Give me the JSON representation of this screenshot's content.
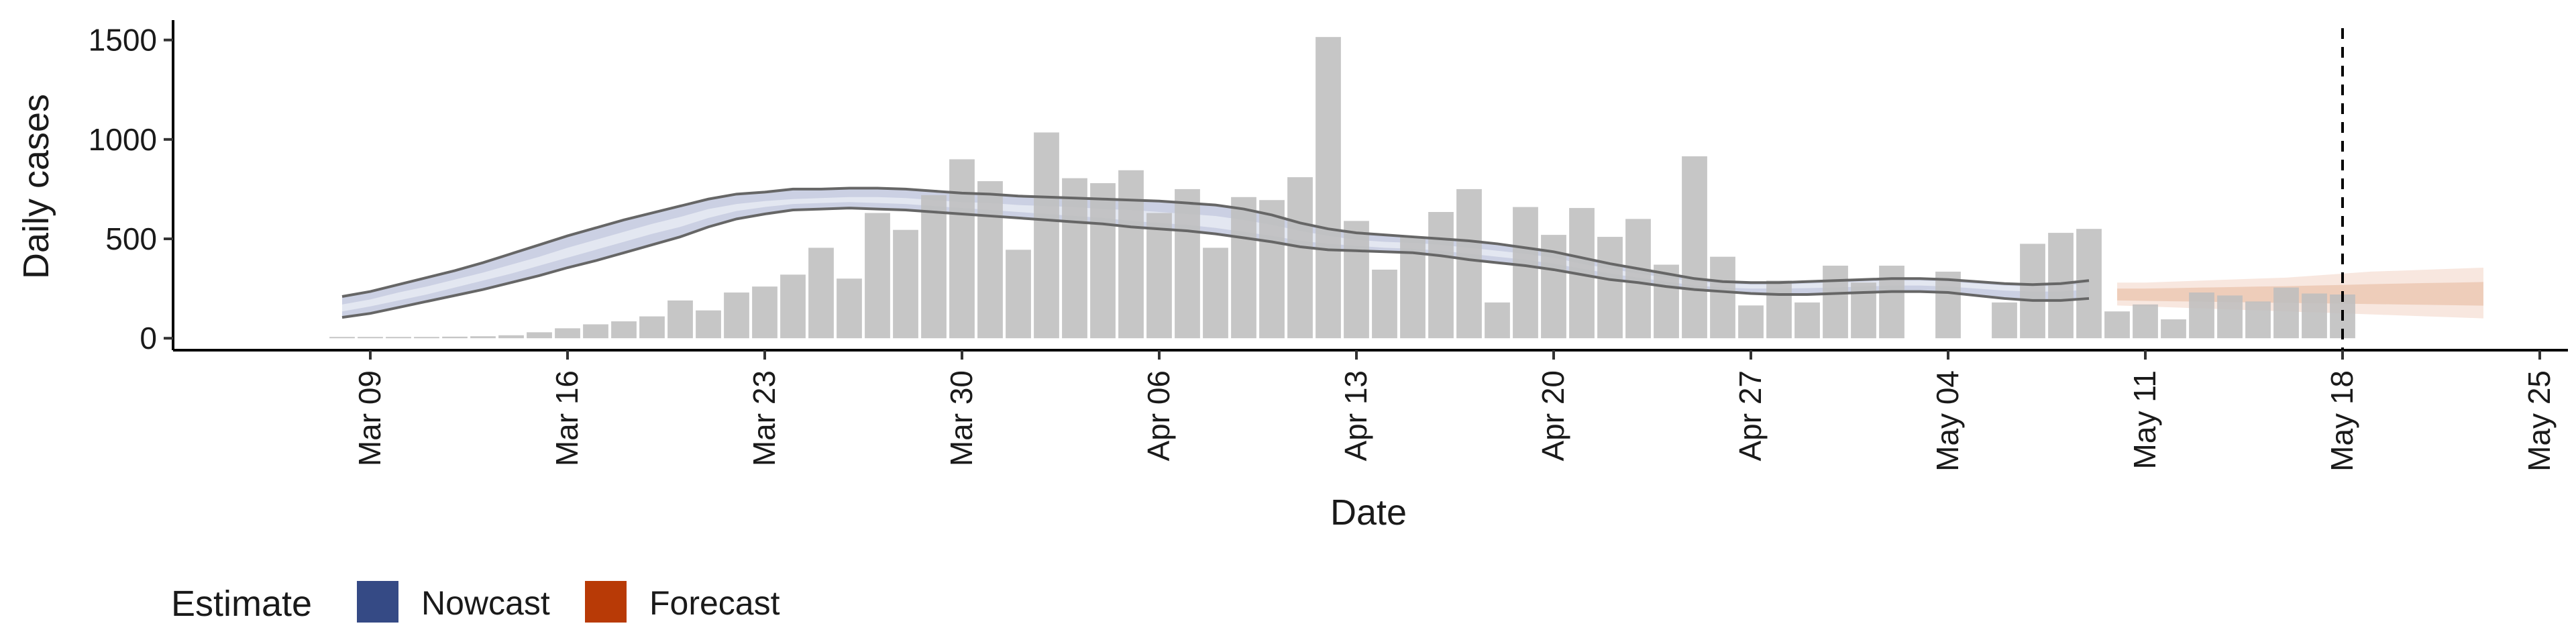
{
  "chart_data": {
    "type": "bar",
    "xlabel": "Date",
    "ylabel": "Daily cases",
    "ylim": [
      -60,
      1600
    ],
    "yticks": [
      0,
      500,
      1000,
      1500
    ],
    "xlim": [
      "2020-03-02",
      "2020-05-26"
    ],
    "xticks": [
      {
        "date": "2020-03-09",
        "label": "Mar 09"
      },
      {
        "date": "2020-03-16",
        "label": "Mar 16"
      },
      {
        "date": "2020-03-23",
        "label": "Mar 23"
      },
      {
        "date": "2020-03-30",
        "label": "Mar 30"
      },
      {
        "date": "2020-04-06",
        "label": "Apr 06"
      },
      {
        "date": "2020-04-13",
        "label": "Apr 13"
      },
      {
        "date": "2020-04-20",
        "label": "Apr 20"
      },
      {
        "date": "2020-04-27",
        "label": "Apr 27"
      },
      {
        "date": "2020-05-04",
        "label": "May 04"
      },
      {
        "date": "2020-05-11",
        "label": "May 11"
      },
      {
        "date": "2020-05-18",
        "label": "May 18"
      },
      {
        "date": "2020-05-25",
        "label": "May 25"
      }
    ],
    "grid": false,
    "legend_placement": "bottom-left",
    "legend": {
      "title": "Estimate",
      "items": [
        {
          "label": "Nowcast",
          "color": "#354a85"
        },
        {
          "label": "Forecast",
          "color": "#b83a06"
        }
      ]
    },
    "colors": {
      "bars": "#bebebe",
      "nowcast_band": "#c5cbe0",
      "nowcast_inner": "#e6e9f2",
      "nowcast_outline": "#666666",
      "forecast_outer": "#f8e6dd",
      "forecast_inner": "#ecc8b4",
      "vline": "#000000"
    },
    "vline": "2020-05-18",
    "bars": {
      "start_date": "2020-03-08",
      "values": [
        2,
        2,
        2,
        0,
        8,
        10,
        15,
        30,
        50,
        70,
        85,
        110,
        190,
        140,
        230,
        260,
        320,
        455,
        300,
        630,
        545,
        720,
        900,
        790,
        445,
        1035,
        805,
        780,
        845,
        630,
        750,
        455,
        710,
        695,
        810,
        1515,
        590,
        345,
        510,
        635,
        750,
        180,
        660,
        520,
        655,
        510,
        600,
        370,
        915,
        410,
        165,
        290,
        180,
        365,
        280,
        365,
        null,
        335,
        null,
        180,
        475,
        530,
        550,
        135,
        170,
        95,
        230,
        215,
        185,
        255,
        225,
        220
      ]
    },
    "nowcast": {
      "start_date": "2020-03-08",
      "upper": [
        210,
        235,
        270,
        305,
        340,
        380,
        425,
        470,
        515,
        555,
        595,
        630,
        665,
        700,
        725,
        735,
        750,
        750,
        755,
        755,
        750,
        740,
        730,
        725,
        715,
        710,
        705,
        700,
        695,
        690,
        680,
        670,
        650,
        620,
        580,
        550,
        530,
        520,
        510,
        500,
        490,
        475,
        455,
        435,
        405,
        375,
        350,
        325,
        300,
        285,
        280,
        280,
        285,
        290,
        295,
        300,
        300,
        295,
        285,
        275,
        270,
        275,
        290
      ],
      "lower": [
        105,
        125,
        155,
        185,
        215,
        245,
        280,
        315,
        355,
        390,
        430,
        470,
        510,
        560,
        600,
        625,
        645,
        650,
        655,
        650,
        645,
        635,
        625,
        615,
        605,
        595,
        585,
        575,
        560,
        550,
        540,
        525,
        505,
        485,
        460,
        445,
        440,
        435,
        430,
        415,
        395,
        380,
        365,
        345,
        320,
        295,
        280,
        260,
        245,
        235,
        225,
        220,
        220,
        225,
        230,
        235,
        235,
        230,
        215,
        200,
        190,
        190,
        200
      ],
      "inner_upper": [
        170,
        195,
        230,
        260,
        295,
        330,
        370,
        410,
        455,
        495,
        535,
        575,
        610,
        650,
        675,
        690,
        700,
        705,
        710,
        710,
        705,
        695,
        685,
        680,
        670,
        665,
        660,
        650,
        645,
        635,
        625,
        615,
        595,
        570,
        540,
        515,
        495,
        485,
        480,
        470,
        455,
        440,
        425,
        405,
        375,
        350,
        325,
        305,
        285,
        275,
        270,
        270,
        275,
        280,
        285,
        290,
        290,
        285,
        275,
        265,
        260,
        265,
        275
      ],
      "inner_lower": [
        135,
        160,
        190,
        220,
        255,
        290,
        325,
        365,
        405,
        445,
        485,
        525,
        560,
        605,
        640,
        660,
        675,
        680,
        685,
        680,
        675,
        665,
        655,
        645,
        635,
        625,
        615,
        605,
        590,
        580,
        570,
        555,
        535,
        515,
        490,
        475,
        465,
        455,
        450,
        440,
        425,
        410,
        395,
        375,
        350,
        325,
        305,
        285,
        265,
        255,
        250,
        250,
        252,
        255,
        260,
        265,
        265,
        260,
        250,
        240,
        235,
        235,
        245
      ]
    },
    "forecast": {
      "start_date": "2020-05-10",
      "upper": [
        280,
        280,
        285,
        290,
        295,
        300,
        305,
        315,
        325,
        335,
        340,
        345,
        350,
        355
      ],
      "lower": [
        165,
        160,
        155,
        150,
        145,
        140,
        135,
        130,
        125,
        120,
        115,
        110,
        105,
        100
      ],
      "inner_upper": [
        250,
        250,
        252,
        255,
        257,
        260,
        262,
        265,
        268,
        272,
        275,
        278,
        280,
        283
      ],
      "inner_lower": [
        190,
        188,
        186,
        184,
        182,
        180,
        178,
        176,
        174,
        172,
        170,
        168,
        166,
        164
      ]
    }
  }
}
